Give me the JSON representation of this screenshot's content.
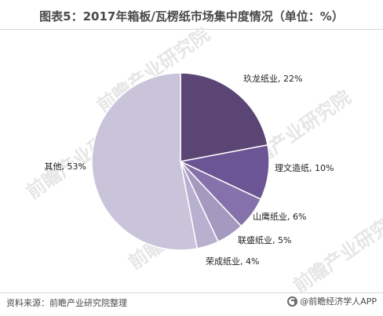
{
  "title": "图表5：2017年箱板/瓦楞纸市场集中度情况（单位：%）",
  "chart_data": {
    "type": "pie",
    "title": "图表5：2017年箱板/瓦楞纸市场集中度情况（单位：%）",
    "slices": [
      {
        "name": "玖龙纸业",
        "value": 22,
        "label": "玖龙纸业, 22%",
        "color": "#5b4574"
      },
      {
        "name": "理文造纸",
        "value": 10,
        "label": "理文造纸, 10%",
        "color": "#6c5594"
      },
      {
        "name": "山鹰纸业",
        "value": 6,
        "label": "山鹰纸业, 6%",
        "color": "#8672aa"
      },
      {
        "name": "联盛纸业",
        "value": 5,
        "label": "联盛纸业, 5%",
        "color": "#a699c0"
      },
      {
        "name": "荣成纸业",
        "value": 4,
        "label": "荣成纸业, 4%",
        "color": "#b8b0cf"
      },
      {
        "name": "其他",
        "value": 53,
        "label": "其他, 53%",
        "color": "#c9c4da"
      }
    ]
  },
  "footer": {
    "source": "资料来源：前瞻产业研究院整理",
    "brand": "@前瞻经济学人APP"
  },
  "watermark_text": "前瞻产业研究院"
}
